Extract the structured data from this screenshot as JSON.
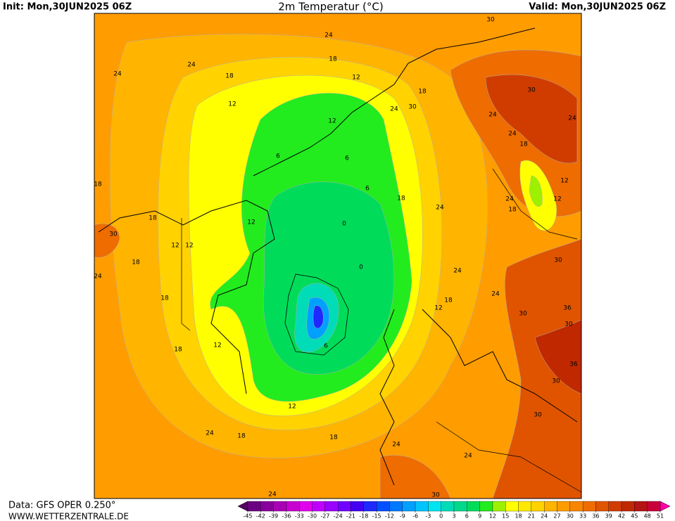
{
  "header": {
    "init": "Init: Mon,30JUN2025 06Z",
    "title": "2m Temperatur (°C)",
    "valid": "Valid: Mon,30JUN2025 06Z"
  },
  "footer": {
    "source": "Data: GFS OPER 0.250°",
    "site": "WWW.WETTERZENTRALE.DE"
  },
  "colorbar": {
    "levels": [
      -45,
      -42,
      -39,
      -36,
      -33,
      -30,
      -27,
      -24,
      -21,
      -18,
      -15,
      -12,
      -9,
      -6,
      -3,
      0,
      3,
      6,
      9,
      12,
      15,
      18,
      21,
      24,
      27,
      30,
      33,
      36,
      39,
      42,
      45,
      48,
      51
    ],
    "colors": [
      "#560062",
      "#6c0082",
      "#88009c",
      "#a800b4",
      "#c800d0",
      "#e000ec",
      "#c000ff",
      "#9a00ff",
      "#7000ff",
      "#4400f0",
      "#1e28ff",
      "#0050ff",
      "#0078ff",
      "#00a0ff",
      "#00c4ff",
      "#00e4f0",
      "#00dcb8",
      "#00d88c",
      "#00dc5a",
      "#22ec1e",
      "#9cf000",
      "#ffff00",
      "#ffe800",
      "#ffd200",
      "#ffb400",
      "#ff9c00",
      "#f88400",
      "#ee6c00",
      "#e05400",
      "#d03c00",
      "#c02800",
      "#b41414",
      "#c8003c",
      "#e40078",
      "#ff00a8"
    ]
  },
  "map_labels": [
    24,
    18,
    24,
    24,
    18,
    12,
    12,
    18,
    24,
    30,
    18,
    6,
    12,
    6,
    6,
    18,
    0,
    0,
    12,
    12,
    12,
    18,
    18,
    18,
    24,
    30,
    24,
    24,
    24,
    12,
    18,
    30,
    30,
    36,
    18,
    12,
    6,
    12,
    24,
    18,
    18,
    24,
    24,
    30,
    30,
    36,
    30,
    24,
    30,
    24,
    18,
    12,
    24,
    18,
    12,
    30,
    24,
    30,
    24
  ]
}
